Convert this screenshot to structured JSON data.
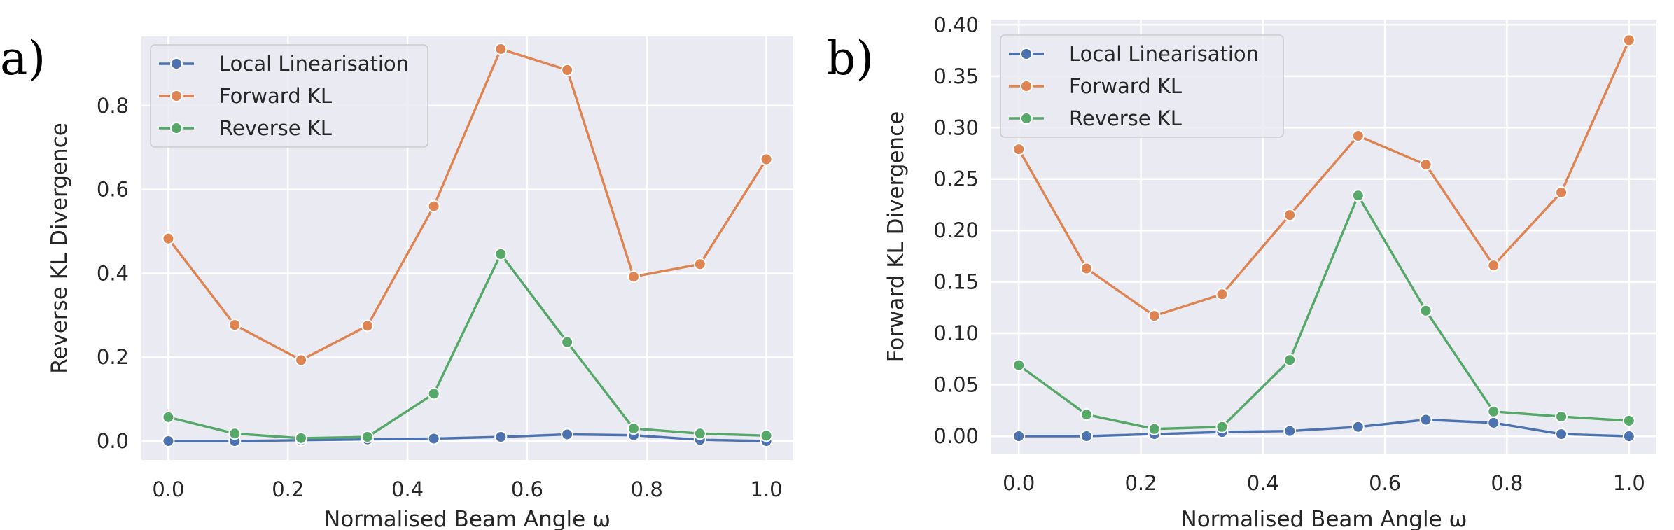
{
  "chart_data": [
    {
      "type": "line",
      "panel_label": "a)",
      "xlabel": "Normalised Beam Angle ω",
      "ylabel": "Reverse KL Divergence",
      "xlim": [
        -0.045,
        1.045
      ],
      "ylim": [
        -0.045,
        0.965
      ],
      "xticks": [
        0.0,
        0.2,
        0.4,
        0.6,
        0.8,
        1.0
      ],
      "xtick_labels": [
        "0.0",
        "0.2",
        "0.4",
        "0.6",
        "0.8",
        "1.0"
      ],
      "yticks": [
        0.0,
        0.2,
        0.4,
        0.6,
        0.8
      ],
      "ytick_labels": [
        "0.0",
        "0.2",
        "0.4",
        "0.6",
        "0.8"
      ],
      "grid": true,
      "legend_position": "top-left",
      "x": [
        0.0,
        0.111,
        0.222,
        0.333,
        0.444,
        0.556,
        0.667,
        0.778,
        0.889,
        1.0
      ],
      "series": [
        {
          "name": "Local Linearisation",
          "color": "#4c72b0",
          "values": [
            0.0,
            0.0,
            0.002,
            0.004,
            0.006,
            0.01,
            0.016,
            0.014,
            0.003,
            0.0
          ]
        },
        {
          "name": "Forward KL",
          "color": "#dd8452",
          "values": [
            0.483,
            0.277,
            0.193,
            0.275,
            0.56,
            0.935,
            0.885,
            0.392,
            0.422,
            0.672
          ]
        },
        {
          "name": "Reverse KL",
          "color": "#55a868",
          "values": [
            0.057,
            0.018,
            0.007,
            0.01,
            0.113,
            0.446,
            0.236,
            0.03,
            0.018,
            0.013
          ]
        }
      ]
    },
    {
      "type": "line",
      "panel_label": "b)",
      "xlabel": "Normalised Beam Angle ω",
      "ylabel": "Forward KL Divergence",
      "xlim": [
        -0.045,
        1.045
      ],
      "ylim": [
        -0.017,
        0.405
      ],
      "xticks": [
        0.0,
        0.2,
        0.4,
        0.6,
        0.8,
        1.0
      ],
      "xtick_labels": [
        "0.0",
        "0.2",
        "0.4",
        "0.6",
        "0.8",
        "1.0"
      ],
      "yticks": [
        0.0,
        0.05,
        0.1,
        0.15,
        0.2,
        0.25,
        0.3,
        0.35,
        0.4
      ],
      "ytick_labels": [
        "0.00",
        "0.05",
        "0.10",
        "0.15",
        "0.20",
        "0.25",
        "0.30",
        "0.35",
        "0.40"
      ],
      "grid": true,
      "legend_position": "top-left",
      "x": [
        0.0,
        0.111,
        0.222,
        0.333,
        0.444,
        0.556,
        0.667,
        0.778,
        0.889,
        1.0
      ],
      "series": [
        {
          "name": "Local Linearisation",
          "color": "#4c72b0",
          "values": [
            0.0,
            0.0,
            0.002,
            0.004,
            0.005,
            0.009,
            0.016,
            0.013,
            0.002,
            0.0
          ]
        },
        {
          "name": "Forward KL",
          "color": "#dd8452",
          "values": [
            0.279,
            0.163,
            0.117,
            0.138,
            0.215,
            0.292,
            0.264,
            0.166,
            0.237,
            0.385
          ]
        },
        {
          "name": "Reverse KL",
          "color": "#55a868",
          "values": [
            0.069,
            0.021,
            0.007,
            0.009,
            0.074,
            0.234,
            0.122,
            0.024,
            0.019,
            0.015
          ]
        }
      ]
    }
  ]
}
